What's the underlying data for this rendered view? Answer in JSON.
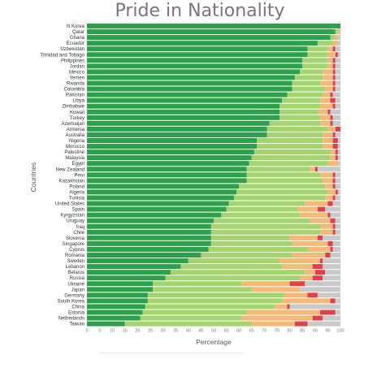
{
  "chart_data": {
    "type": "bar",
    "orientation": "horizontal",
    "stacked": true,
    "title": "Pride in Nationality",
    "xlabel": "Percentage",
    "ylabel": "Countries",
    "xlim": [
      0,
      100
    ],
    "xticks": [
      "0",
      "5",
      "10",
      "15",
      "20",
      "25",
      "30",
      "35",
      "40",
      "45",
      "50",
      "55",
      "60",
      "65",
      "70",
      "75",
      "80",
      "85",
      "90",
      "95",
      "100"
    ],
    "grid": false,
    "legend": "none",
    "colors": [
      "#2ca14a",
      "#a3d46e",
      "#f5b877",
      "#e0404a",
      "#c9c9c9"
    ],
    "categories": [
      "N Korea",
      "Qatar",
      "Ghana",
      "Ecuador",
      "Uzbekistan",
      "Trinidad and Tobago",
      "Philippines",
      "Jordan",
      "Mexico",
      "Yemen",
      "Rwanda",
      "Colombia",
      "Pakistan",
      "Libya",
      "Zimbabwe",
      "Kuwait",
      "Turkey",
      "Azerbaijan",
      "Armenia",
      "Australia",
      "Nigeria",
      "Morocco",
      "Palestine",
      "Malaysia",
      "Egypt",
      "New Zealand",
      "Peru",
      "Kazakhstan",
      "Poland",
      "Algeria",
      "Tunisia",
      "United States",
      "Spain",
      "Kyrgyzstan",
      "Uruguay",
      "Iraq",
      "Chile",
      "Slovenia",
      "Singapore",
      "Cyprus",
      "Romania",
      "Sweden",
      "Lebanon",
      "Belarus",
      "Russia",
      "Ukraine",
      "Japan",
      "Germany",
      "South Korea",
      "China",
      "Estonia",
      "Netherlands",
      "Taiwan"
    ],
    "series": [
      {
        "values": [
          100,
          98,
          96,
          91,
          87,
          87,
          85,
          85,
          84,
          82,
          81,
          81,
          79,
          77,
          76,
          76,
          76,
          72,
          71,
          71,
          67,
          67,
          66,
          65,
          64,
          63,
          63,
          63,
          60,
          59,
          58,
          56,
          55,
          53,
          50,
          49,
          49,
          49,
          49,
          48,
          45,
          40,
          37,
          33,
          31,
          26,
          26,
          24,
          24,
          23,
          22,
          21,
          15
        ]
      },
      {
        "values": [
          0,
          1,
          2,
          6,
          8,
          8,
          10,
          10,
          9,
          11,
          11,
          13,
          14,
          15,
          16,
          15,
          16,
          20,
          24,
          22,
          26,
          26,
          30,
          31,
          31,
          25,
          29,
          30,
          34,
          36,
          36,
          30,
          28,
          31,
          38,
          43,
          43,
          31,
          32,
          39,
          36,
          36,
          40,
          53,
          53,
          35,
          39,
          54,
          53,
          51,
          41,
          40,
          50
        ]
      },
      {
        "values": [
          0,
          1,
          1,
          2,
          2,
          3,
          2,
          2,
          4,
          4,
          5,
          3,
          3,
          4,
          5,
          4,
          4,
          4,
          3,
          4,
          4,
          4,
          2,
          2,
          4,
          2,
          5,
          4,
          3,
          3,
          3,
          9,
          8,
          11,
          8,
          5,
          5,
          11,
          14,
          9,
          13,
          16,
          12,
          4,
          5,
          19,
          19,
          9,
          19,
          5,
          29,
          28,
          17
        ]
      },
      {
        "values": [
          0,
          0,
          0,
          0,
          1,
          1,
          1,
          1,
          1,
          1,
          1,
          1,
          1,
          2,
          1,
          1,
          1,
          1,
          2,
          1,
          2,
          2,
          1,
          1,
          0,
          1,
          1,
          1,
          1,
          1,
          1,
          2,
          3,
          1,
          2,
          1,
          1,
          2,
          2,
          1,
          2,
          1,
          4,
          4,
          4,
          6,
          0,
          4,
          2,
          1,
          6,
          4,
          5
        ]
      },
      {
        "values": [
          0,
          0,
          1,
          1,
          2,
          1,
          2,
          2,
          2,
          2,
          2,
          2,
          3,
          2,
          2,
          4,
          3,
          3,
          0,
          2,
          1,
          1,
          1,
          1,
          1,
          9,
          2,
          2,
          2,
          1,
          2,
          3,
          6,
          4,
          2,
          2,
          2,
          7,
          3,
          3,
          4,
          7,
          7,
          6,
          7,
          14,
          16,
          9,
          2,
          20,
          2,
          7,
          13
        ]
      }
    ]
  }
}
